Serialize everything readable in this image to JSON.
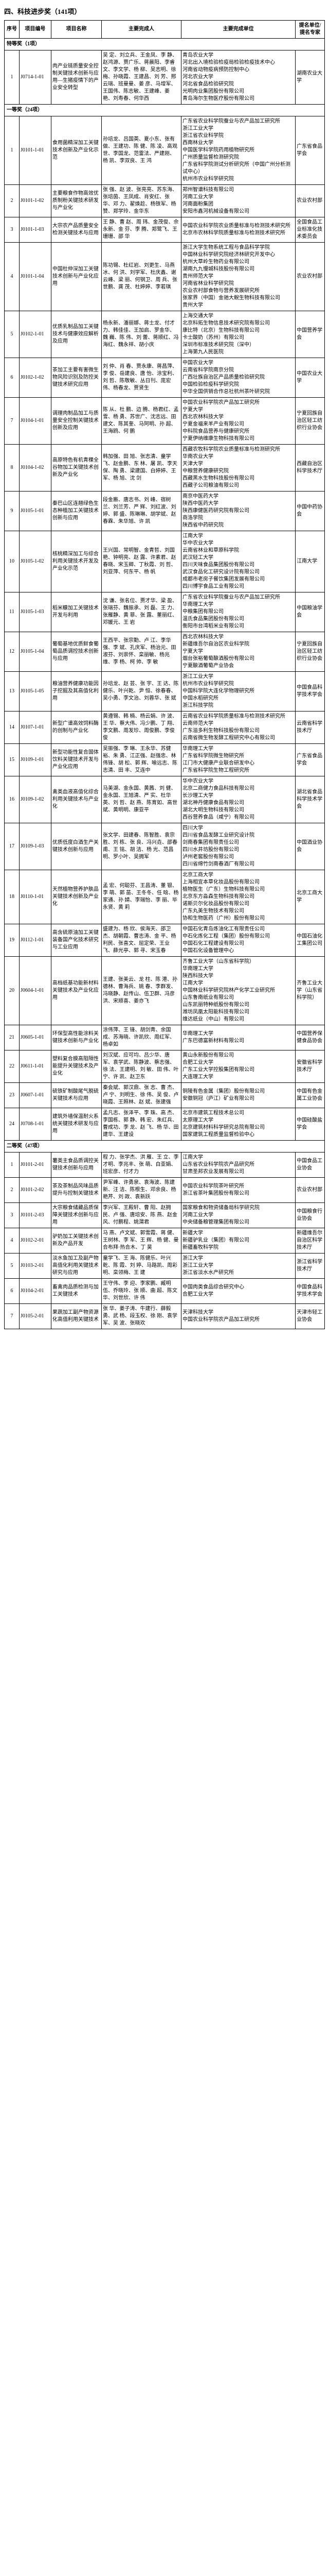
{
  "title": "四、科技进步奖（141项）",
  "columns": [
    "序号",
    "项目编号",
    "项目名称",
    "主要完成人",
    "主要完成单位",
    "提名单位/提名专家"
  ],
  "sections": [
    {
      "label": "特等奖（1项）",
      "rows": [
        {
          "idx": "1",
          "code": "J0714-1-01",
          "name": "肉产业链质量安全控制关键技术创新与应用—生猪疫情下的产业安全转型",
          "people": "吴 定、刘立兵、王金凤、李 静、赵鸿源、贾广乐、蒋晨阳、李睿文、李文学、杨 柳、吴志明、徐 梅、孙晓霞、王建昌、刘 芳、邢云瑞、班曼曼、姜 彦、马增军、王国伟、陈志敏、王建峰、姜 艳、刘寿春、何华西",
          "units": "青岛农业大学\n河北出入境检验检疫局检验检疫技术中心\n河南省动物疫病预防控制中心\n河北农业大学\n河北省食品检验研究院\n光明肉业集团股份有限公司\n青岛海尔生物医疗股份有限公司",
          "nominator": "湖南农业大学"
        }
      ]
    },
    {
      "label": "一等奖（24项）",
      "rows": [
        {
          "idx": "1",
          "code": "J0101-1-01",
          "name": "食用菌精深加工关键技术创新及产业化示范",
          "people": "孙培龙、吕国英、夏小东、张有做、王建功、陈 健、陈 凌、高观世、李国龙、范雷法、严建刚、杨 凯、李双良、王 鸿",
          "units": "广东省农业科学院蚕业与农产品加工研究所\n浙江工业大学\n浙江省农业科学院\n西南林业大学\n中国医学科学院药用植物研究所\n广州质量监督检测研究院\n广东省科学院测试分析研究所（中国广州分析测试中心）\n杭州市农业科学研究院",
          "nominator": "广东省食品学会"
        },
        {
          "idx": "2",
          "code": "J0101-1-02",
          "name": "主要粮食作物高效优质制粉关键技术研发与产业化",
          "people": "张 强、赵 波、张亮亮、苏东海、张培茵、王凤成、肖安红、张 华、邓 力、翟焕趁、杨铁军、杨 赞、郑学玲、金华东",
          "units": "郑州智谱科技有限公司\n河南工业大学\n河南面粉集团\n安阳市鑫河机械设备有限公司",
          "nominator": "农业农村部"
        },
        {
          "idx": "3",
          "code": "J0101-1-03",
          "name": "大宗农产品质量安全检测关键技术与应用",
          "people": "王 静、曹 赵、周 玮、金茂俊、佘永新、金 芬、李 腾、郑鹭飞、王珊珊、邵 华",
          "units": "中国农业科学院农业质量标准与检测技术研究所\n北京市农林科学院质量标准与检测技术研究所",
          "nominator": "全国食品工业标准化技术委员会"
        },
        {
          "idx": "4",
          "code": "J0101-1-04",
          "name": "中国杜仲深加工关键技术创新与产业化应用",
          "people": "陈功锡、杜红岩、刘更生、马燕冰、何 洪、刘学军、杜庆鑫、谢云峰、梁 丽、何钢卫、周 兵、张世鹏、龚 茂、杜婷婷、李若琪",
          "units": "浙江大学生物系统工程与食品科学学院\n中国林业科学研究院经济林研究开发中心\n杭州大草岭生物药业有限公司\n湖南九九慢城科技股份有限公司\n贵州师范大学\n河南省林业科学研究院\n农业农村部食物与营养发展研究所\n张家界（中国）金驰大鲵生物科技有限公司\n贵州大学",
          "nominator": "农业农村部"
        },
        {
          "idx": "5",
          "code": "J0102-1-01",
          "name": "优质乳制品加工关键技术与健康效应解析及应用",
          "people": "杨永新、潘丽娜、蒋士龙、付才力、韩佳佳、王加启、罗金华、魏 巍、陈 伟、刘 蕾、蒋顺红、冯海红、魏永祥、胡小庆",
          "units": "上海交通大学\n北京科拓生物信息技术研究院有限公司\n康比特（北京）生物科技有限公司\n卡士酸奶（苏州）有限公司\n深圳市标准技术研究院（深中）\n上海第九人民医院",
          "nominator": "中国营养学会"
        },
        {
          "idx": "6",
          "code": "J0102-1-02",
          "name": "茶加工主要有害微生物风险识别及防控关键技术研究应用",
          "people": "刘 仲、肖 春、贾永康、蒋昌萍、李 俊、岳建良、唐 怡、涂宝利、刘 哲、陈敬敏、丛日刊、庞宏伟、杨春龙、贾贤生",
          "units": "中国农业大学\n云南省科学院南京分院\n广西壮族自治区产品质量检验研究院\n中国检验检疫科学研究院\n中华全国供销合作总社杭州茶叶研究院",
          "nominator": "中国农业大学"
        },
        {
          "idx": "7",
          "code": "J0104-1-01",
          "name": "调理肉制品加工与质量安全控制关键技术创新及应用",
          "people": "陈 从、杜 鹏、边 腾、杨君红、孟 雪、杨 勇、苏世广、沈志远、田建文、陈其奎、马阿明、孙 超、王海鸥、何 鹏",
          "units": "中国农业科学院农产品加工研究所\n宁夏大学\n西北农林科技大学\n宁夏金福来羊产业有限公司\n中科院食品营养与健康研究所\n宁夏伊纳维康生物科技有限公司",
          "nominator": "宁夏回族自治区轻工纺织行业协会"
        },
        {
          "idx": "8",
          "code": "J0104-1-02",
          "name": "高原特色有机青稞全谷物加工关键技术创新及产业化",
          "people": "韩加强、田 旭、张志清、童学飞、赵金鹏、东 林、屠 凯、李天保、陶 勇、梁建国、白婷婷、王 军、杨 旭、沈 剑",
          "units": "西藏农牧科学院农业质量标准与检测研究所\n华南农业大学\n天津大学\n中粮营养健康研究院\n西藏黑水生物科技股份有限公司\n西藏子公司粮油有限公司",
          "nominator": "西藏自治区科学技术厅"
        },
        {
          "idx": "9",
          "code": "J0105-1-01",
          "name": "秦巴山区连翘绿色生态种植加工关键技术创新与应用",
          "people": "段金廒、唐志书、刘 峰、宿树兰、刘兰芳、严 辉、刘红波、刘 婷、郭 盛、陈琳琳、胡学斌、赵春霖、朱华旭、许 凯",
          "units": "南京中医药大学\n陕西中医药大学\n陕西康健医药研究院有限公司\n商洛学院\n陕西省中药研究院",
          "nominator": "中国中药协会"
        },
        {
          "idx": "10",
          "code": "J0105-1-02",
          "name": "核桃精深加工与综合利用关键技术开发及产业化示范",
          "people": "王兴国、常明智、金青哲、刘国艳、钟明亮、赵 露、许素君、赵春晓、宋玉卿、丁秋霞、刘 哲、刘亚萍、何东平、杨 帆",
          "units": "江南大学\n华中农业大学\n云南省林业和草原科学院\n武汉轻工大学\n四川天味食品集团股份有限公司\n武汉食品化工研究设计院有限公司\n成都市老房子餐饮集团发展有限公司\n四川博宇食品工业有限公司",
          "nominator": "江南大学"
        },
        {
          "idx": "11",
          "code": "J0105-1-03",
          "name": "稻米糠加工关键技术开发与利用",
          "people": "沈 谦、张名位、贾才华、梁 盈、张瑞芬、魏振承、刘 磊、王 力、张雁静、黄 菲、张 露、董丽红、邓媛元、王 岩",
          "units": "广东省农业科学院蚕业与农产品加工研究所\n华南理工大学\n中粮集团有限公司\n温氏食品集团股份有限公司\n衡阳市台湾稻米业有限公司",
          "nominator": "中国粮油学会"
        },
        {
          "idx": "12",
          "code": "J0105-1-04",
          "name": "葡萄基地优质鲜食葡萄品质调控技术创新与应用",
          "people": "王西平、张宗勤、卢 江、李华强、李 斌、孔庆军、杨治元、田淑芬、刘崇怀、栾丽敏、杨兆维、李 杨、柯 帅、李 敏",
          "units": "西北农林科技大学\n新疆维吾尔自治区农业科学院\n宁夏大学\n烟台张裕葡萄酿酒股份有限公司\n宁夏酿酒葡萄产业协会",
          "nominator": "宁夏回族自治区轻工纺织行业协会"
        },
        {
          "idx": "13",
          "code": "J0105-1-05",
          "name": "粮油营养健康功能因子挖掘及其高值化利用",
          "people": "孙培龙、赵 芸、张 宇、王 达、陈健乐、叶兴乾、尹 恒、徐春春、吴小勇、李文治、刘蓉华、张 斌",
          "units": "浙江工业大学\n杭州市农业科学研究院\n中国科学院大连化学物理研究所\n中国水稻研究所\n浙江科技学院",
          "nominator": "中国食品科学技术学会"
        },
        {
          "idx": "14",
          "code": "J0107-1-01",
          "name": "新型广谱高效饲料酶的创制与产业化",
          "people": "黄遵锡、韩 楠、杨云娟、许 波、王 华、蔡大伟、冯少鹏、丁 翔、李文鹏、周发珍、周俊鹏、李俊俊",
          "units": "云南省农业科学院质量标准与检测技术研究所\n云南师范大学\n广东溢多利生物科技股份有限公司\n云南省微生物发酵工程研究中心有限公司",
          "nominator": "云南省科学技术厅"
        },
        {
          "idx": "15",
          "code": "J0109-1-01",
          "name": "新型功能性复合固体饮料关键技术开发与产业化应用",
          "people": "吴振强、李 琳、王永华、苏健裕、朱 勇、江正强、赵强忠、林伟锋、胡 松、郭 辉、喻远志、陈志清、田 丰、艾连中",
          "units": "华南理工大学\n广东省科学院微生物研究所\n江门市大健康产业联合研发中心\n广东省科学院生物工程研究所",
          "nominator": "广东省食品学会"
        },
        {
          "idx": "16",
          "code": "J0109-1-02",
          "name": "禽类血液高值化综合利用关键技术与产业化",
          "people": "马美湖、金永国、黄茜、刘 健、金永国、王旭清、严 实、杜华英、刘 哲、赵 燕、陈育如、高世斌、黄明明、康亚平",
          "units": "华中农业大学\n北京二商健力食品科技有限公司\n长沙理工大学\n湖北神丹健康食品有限公司\n湖北大明生物科技有限公司\n西谷营养食品（咸宁）有限公司",
          "nominator": "湖北省食品科学技术学会"
        },
        {
          "idx": "17",
          "code": "J0109-1-03",
          "name": "优质低度白酒生产关键技术创新与应用",
          "people": "张文学、田建春、陈智胜、袁宗胜、刘 栋、张 良、冯兴垚、邵春甫、王 铭、胡 洁、杨 光、范昌明、罗小叶、吴拥军",
          "units": "四川大学\n四川省食品发酵工业研究设计院\n剑南春集团有限责任公司\n四川水井坊股份有限公司\n泸州老窖股份有限公司\n四川省绵竹剑南春酒厂有限公司",
          "nominator": "中国酒业协会"
        },
        {
          "idx": "18",
          "code": "J0110-1-01",
          "name": "天然植物营养护肤品关键技术创新及产业化",
          "people": "孟 宏、何聪芬、王昌涛、董 银、李 萌、郭 苗、王冬冬、任 晗、杨家通、孙 婧、李瑞怡、李 丽、毕永贤、黄 莉",
          "units": "北京工商大学\n上海相宜本草化妆品股份有限公司\n植物医生（广东）生物科技有限公司\n北京东方淼森生物科技有限公司\n诺斯贝尔化妆品股份有限公司\n广东丸美生物技术有限公司\n协和生物医药（广州）股份有限公司",
          "nominator": "北京工商大学"
        },
        {
          "idx": "19",
          "code": "J0112-1-01",
          "name": "高含硫原油加工关键装备国产化技术研究与工业应用",
          "people": "盛建为、杨 欣、侯海天、邵卫杰、胡朝霞、曹志涛、金 平、杨利民、张喜文、屈定荣、王业飞、薛光亭、郭 寻、宋玉春",
          "units": "中国石化青岛炼油化工有限责任公司\n中石化炼化工程（集团）股份有限公司\n中国石化工程建设有限公司\n中国石化设备管理中心",
          "nominator": "中国石油化工集团公司"
        },
        {
          "idx": "20",
          "code": "J0604-1-01",
          "name": "高档纸基功能新材料关键技术及产业化应用",
          "people": "王建、张美云、龙 柱、陈 港、孙德林、曹海兵、姚 春、李群发、冯晓静、赵传山、伍卫群、冯彦洪、宋顺喜、姜亦飞",
          "units": "齐鲁工业大学（山东省科学院）\n华南理工大学\n陕西科技大学\n江南大学\n中国林业科学研究院林产化学工业研究所\n山东鲁南纸业有限公司\n山东凯丽特种纸股份有限公司\n潍坊凤凰太阳能科技有限公司\n维达纸业（中山）有限公司",
          "nominator": "齐鲁工业大学（山东省科学院）"
        },
        {
          "idx": "21",
          "code": "J0605-1-01",
          "name": "环保型高性能涂料关键技术创新与产业化",
          "people": "涂伟萍、王 锋、胡剑青、余国成、苏海晓、许凯欣、周红军、杨卓如",
          "units": "华南理工大学\n广东巴德富新材料有限公司",
          "nominator": "中国营养保健食品协会"
        },
        {
          "idx": "22",
          "code": "J0611-1-01",
          "name": "塑料复合膜高阻隔性能提升关键技术及产业化",
          "people": "刘汉斌、应可均、吕少华、唐 军、袁学武、陈静波、蔡志强、徐 法、王建明、刘 敏、田 伟、叶 宁、许 凯、赵卫东",
          "units": "黄山永新股份有限公司\n合肥工业大学\n广东工业大学控股集团有限公司\n大连理工大学",
          "nominator": "安徽省科学技术厅"
        },
        {
          "idx": "23",
          "code": "J0607-1-01",
          "name": "硫铁矿制酸尾气脱硫关键技术与应用",
          "people": "秦会斌、郭汉鼎、张 志、曹 杰、卢 宁、刘明生、徐 伟、吴 俊、卢晓霞、王照林、赵 斌、张建强",
          "units": "铜陵有色金属（集团）股份有限公司\n安徽铜冠（庐江）矿业有限公司",
          "nominator": "中国有色金属工业协会"
        },
        {
          "idx": "24",
          "code": "J0708-1-01",
          "name": "建筑外墙保温耐火系统关键技术研发与应用",
          "people": "孟凡志、张泽平、李 珠、高 杰、李国栋、郭 静、韩 宏、朱红兵、曹成功、李 龙、赵 飞、杨 华、田建华、王建设",
          "units": "北京市建筑工程技术总公司\n太原理工大学\n北京建筑材料科学研究总院有限公司\n国家建筑工程质量监督检验中心",
          "nominator": "中国硅酸盐学会"
        }
      ]
    },
    {
      "label": "二等奖（47项）",
      "rows": [
        {
          "idx": "1",
          "code": "J0101-2-01",
          "name": "薯类主食品质调控关键技术创新与应用",
          "people": "程 力、张学杰、洪 雁、王 立、李才明、李兆丰、张 萌、白亚娟、班宏彦、付才力",
          "units": "江南大学\n山东省农业科学院农产品研究所\n甘肃圣邦农业发展有限公司",
          "nominator": "中国食品工业协会"
        },
        {
          "idx": "2",
          "code": "J0101-2-02",
          "name": "茶及茶制品风味品质提升与控制关键技术",
          "people": "尹军峰、许勇泉、袁海波、陈建新、汪 洁、陈根生、邓余良、杨艳芹、刘 政、袁新跃",
          "units": "中国农业科学院茶叶研究所\n浙江省茶叶集团股份有限公司",
          "nominator": "农业农村部"
        },
        {
          "idx": "3",
          "code": "J0101-2-03",
          "name": "大宗粮食储藏品质保障关键技术创新与应用",
          "people": "李兴军、王殿轩、曹 阳、赵拥民、卢 强、唐培安、陈 燕、赵金风、付鹏程、姚渭君",
          "units": "国家粮食和物资储备局科学研究院\n河南工业大学\n中央储备粮管理集团有限公司",
          "nominator": "中国粮食行业协会"
        },
        {
          "idx": "4",
          "code": "J0102-2-01",
          "name": "驴奶加工关键技术创新及产品开发",
          "people": "马 燕、卢文斌、郭雪霞、蒋 健、王树林、李 军、王 辉、杨 健、曼合布拜·热合木、丁 昊",
          "units": "新疆大学\n新疆驴乳业（集团）有限公司\n新疆畜牧科学院",
          "nominator": "新疆维吾尔自治区科学技术厅"
        },
        {
          "idx": "5",
          "code": "J0103-2-01",
          "name": "淡水鱼加工及副产物高值化利用关键技术研究与应用",
          "people": "童学飞、王 海、陈健乐、叶兴乾、陈 霞、刘 婷、马路凯、周彩明、栾领梅、王 建",
          "units": "浙江大学\n浙江工业大学\n浙江省淡水水产研究所",
          "nominator": "浙江省科学技术厅"
        },
        {
          "idx": "6",
          "code": "J0104-2-01",
          "name": "畜禽肉品质检测与加工关键技术",
          "people": "王守伟、李 迎、李家鹏、臧明伍、乔晓玲、张 顺、曲 超、陈文华、刘世欣、许 伟",
          "units": "中国肉类食品综合研究中心\n合肥工业大学",
          "nominator": "中国食品科学技术学会"
        },
        {
          "idx": "7",
          "code": "J0105-2-01",
          "name": "果蔬加工副产物资源化高值利用关键技术",
          "people": "张 华、姜子涛、牛建行、薛毅勇、武 杨、段玉权、徐 刚、袁学军、吴 波、张晓欢",
          "units": "天津科技大学\n中国农业科学院农产品加工研究所",
          "nominator": "天津市轻工业协会"
        }
      ]
    }
  ]
}
